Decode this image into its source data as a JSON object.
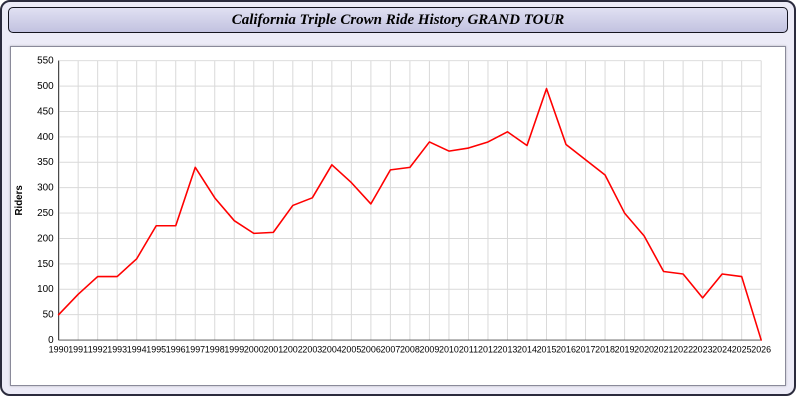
{
  "window": {
    "title": "California Triple Crown Ride History GRAND TOUR"
  },
  "chart_data": {
    "type": "line",
    "title": "California Triple Crown Ride History GRAND TOUR",
    "xlabel": "",
    "ylabel": "Riders",
    "ylim": [
      0,
      550
    ],
    "ytick_step": 50,
    "grid": true,
    "legend": "none",
    "line_color": "#ff0000",
    "grid_color": "#d9d9d9",
    "axis_color": "#444444",
    "x": [
      1990,
      1991,
      1992,
      1993,
      1994,
      1995,
      1996,
      1997,
      1998,
      1999,
      2000,
      2001,
      2002,
      2003,
      2004,
      2005,
      2006,
      2007,
      2008,
      2009,
      2010,
      2011,
      2012,
      2013,
      2014,
      2015,
      2016,
      2017,
      2018,
      2019,
      2020,
      2021,
      2022,
      2023,
      2024,
      2025,
      2026
    ],
    "values": [
      50,
      90,
      125,
      125,
      160,
      225,
      225,
      340,
      280,
      235,
      210,
      212,
      265,
      280,
      345,
      310,
      268,
      335,
      340,
      390,
      372,
      378,
      390,
      410,
      383,
      495,
      385,
      355,
      325,
      250,
      205,
      135,
      130,
      83,
      130,
      125,
      0
    ]
  }
}
